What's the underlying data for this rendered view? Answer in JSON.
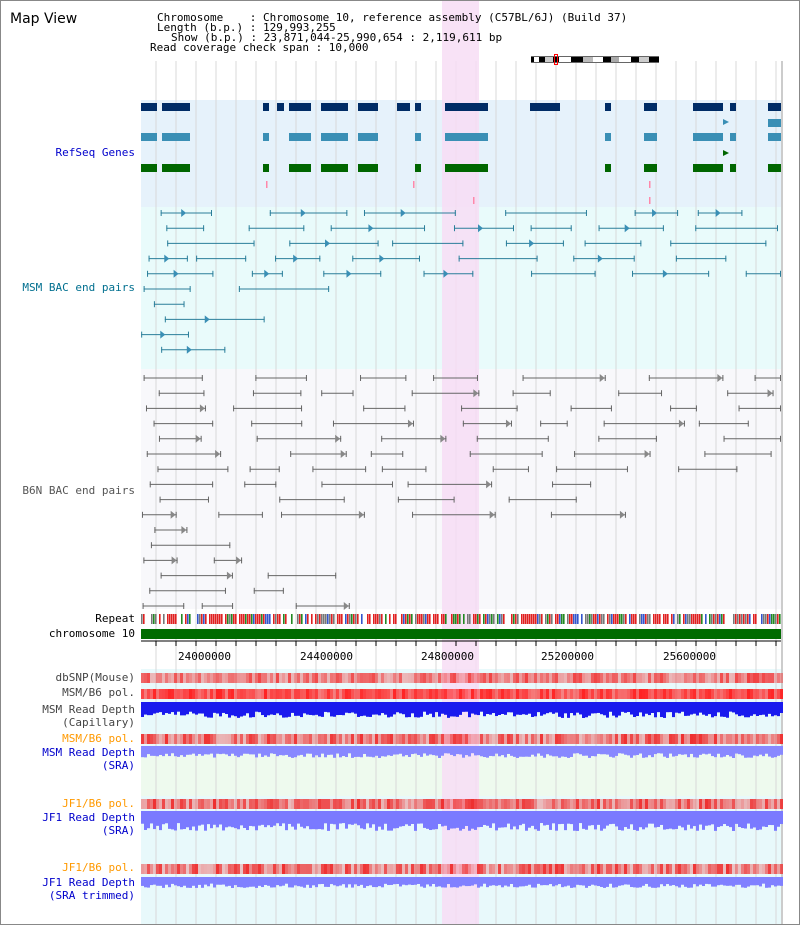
{
  "title": "Map View",
  "info": {
    "chromosome_line": "Chromosome    : Chromosome 10, reference assembly (C57BL/6J) (Build 37)",
    "length_line": "Length (b.p.) : 129,993,255",
    "show_line": "Show (b.p.) : 23,871,044-25,990,654 : 2,119,611 bp",
    "coverage_line": "Read coverage check span : 10,000"
  },
  "tracks": {
    "refseq": "RefSeq Genes",
    "msm_bac": "MSM BAC end pairs",
    "b6n_bac": "B6N BAC end pairs",
    "repeat": "Repeat",
    "chromosome": "chromosome 10",
    "dbsnp": "dbSNP(Mouse)",
    "msm_b6_pol_1": "MSM/B6 pol.",
    "msm_depth_cap_1": "MSM Read Depth",
    "msm_depth_cap_2": "(Capillary)",
    "msm_b6_pol_2": "MSM/B6 pol.",
    "msm_depth_sra_1": "MSM Read Depth",
    "msm_depth_sra_2": "(SRA)",
    "jf1_b6_pol_1": "JF1/B6 pol.",
    "jf1_depth_sra_1": "JF1 Read Depth",
    "jf1_depth_sra_2": "(SRA)",
    "jf1_b6_pol_2": "JF1/B6 pol.",
    "jf1_depth_trim_1": "JF1 Read Depth",
    "jf1_depth_trim_2": "(SRA trimmed)"
  },
  "axis": {
    "ticks": [
      "24000000",
      "24400000",
      "24800000",
      "25200000",
      "25600000"
    ]
  },
  "colors": {
    "refseq_bg": "#e6f2fb",
    "msm_bg": "#e9fbfb",
    "b6n_bg": "#f8f8fb",
    "highlight": "#f7ddf5",
    "navy": "#002c66",
    "steel": "#3a8fb5",
    "green": "#006600",
    "teal_line": "#2a7e9a",
    "gray_line": "#666666",
    "label_blue": "#0000cc",
    "label_teal": "#006f8f",
    "label_gray": "#555555",
    "label_orange": "#ff9900",
    "chrom_green": "#006b00"
  }
}
